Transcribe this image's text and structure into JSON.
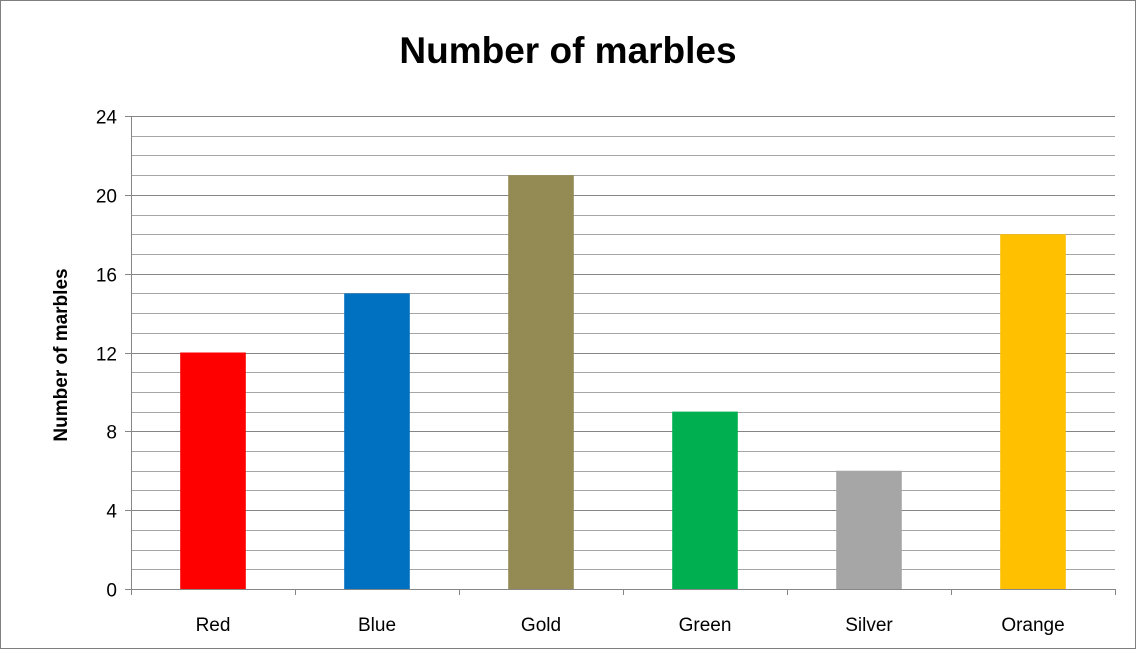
{
  "chart_data": {
    "type": "bar",
    "title": "Number of marbles",
    "xlabel": "",
    "ylabel": "Number of marbles",
    "categories": [
      "Red",
      "Blue",
      "Gold",
      "Green",
      "Silver",
      "Orange"
    ],
    "values": [
      12,
      15,
      21,
      9,
      6,
      18
    ],
    "colors": [
      "#ff0000",
      "#0070c0",
      "#948a54",
      "#00b050",
      "#a6a6a6",
      "#ffc000"
    ],
    "ylim": [
      0,
      24
    ],
    "yticks": [
      0,
      4,
      8,
      12,
      16,
      20,
      24
    ],
    "minor_grid_step": 1,
    "grid": true,
    "legend": "none"
  }
}
